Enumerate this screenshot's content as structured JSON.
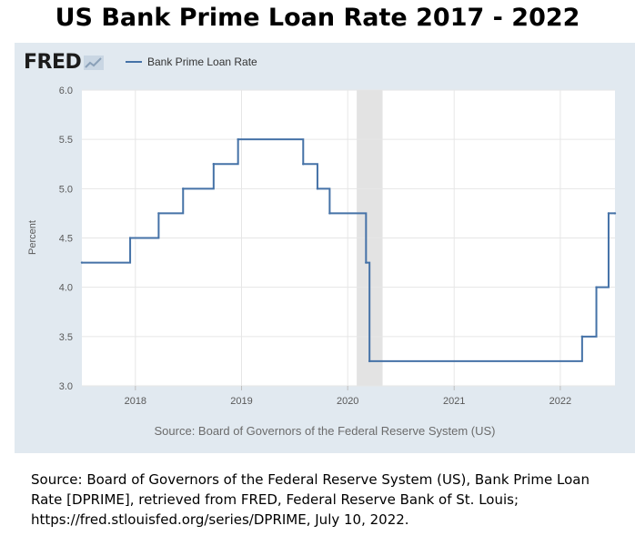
{
  "page": {
    "title": "US Bank Prime Loan Rate 2017 - 2022",
    "brand": "FRED",
    "chart_source": "Source: Board of Governors of the Federal Reserve System (US)",
    "citation": "Source: Board of Governors of the Federal Reserve System (US), Bank Prime Loan Rate [DPRIME], retrieved from FRED, Federal Reserve Bank of St. Louis; https://fred.stlouisfed.org/series/DPRIME, July 10, 2022."
  },
  "chart_data": {
    "type": "line",
    "title": "",
    "xlabel": "",
    "ylabel": "Percent",
    "x_range": [
      "2017-07-01",
      "2022-07-08"
    ],
    "ylim": [
      3.0,
      6.0
    ],
    "y_ticks": [
      "3.0",
      "3.5",
      "4.0",
      "4.5",
      "5.0",
      "5.5",
      "6.0"
    ],
    "x_ticks": [
      {
        "label": "2018",
        "date": "2018-01-01"
      },
      {
        "label": "2019",
        "date": "2019-01-01"
      },
      {
        "label": "2020",
        "date": "2020-01-01"
      },
      {
        "label": "2021",
        "date": "2021-01-01"
      },
      {
        "label": "2022",
        "date": "2022-01-01"
      }
    ],
    "grid": true,
    "legend_position": "top-left",
    "recession_shading": [
      {
        "start": "2020-02-01",
        "end": "2020-04-30"
      }
    ],
    "colors": {
      "line": "#4572a7",
      "recession": "#e3e3e3",
      "grid": "#e6e6e6",
      "panel": "#e1e9f0"
    },
    "series": [
      {
        "name": "Bank Prime Loan Rate",
        "step": true,
        "points": [
          {
            "date": "2017-07-01",
            "value": 4.25
          },
          {
            "date": "2017-12-14",
            "value": 4.5
          },
          {
            "date": "2018-03-22",
            "value": 4.75
          },
          {
            "date": "2018-06-14",
            "value": 5.0
          },
          {
            "date": "2018-09-27",
            "value": 5.25
          },
          {
            "date": "2018-12-20",
            "value": 5.5
          },
          {
            "date": "2019-08-01",
            "value": 5.25
          },
          {
            "date": "2019-09-19",
            "value": 5.0
          },
          {
            "date": "2019-10-31",
            "value": 4.75
          },
          {
            "date": "2020-03-04",
            "value": 4.25
          },
          {
            "date": "2020-03-16",
            "value": 3.25
          },
          {
            "date": "2022-03-17",
            "value": 3.5
          },
          {
            "date": "2022-05-05",
            "value": 4.0
          },
          {
            "date": "2022-06-16",
            "value": 4.75
          },
          {
            "date": "2022-07-08",
            "value": 4.75
          }
        ]
      }
    ]
  }
}
